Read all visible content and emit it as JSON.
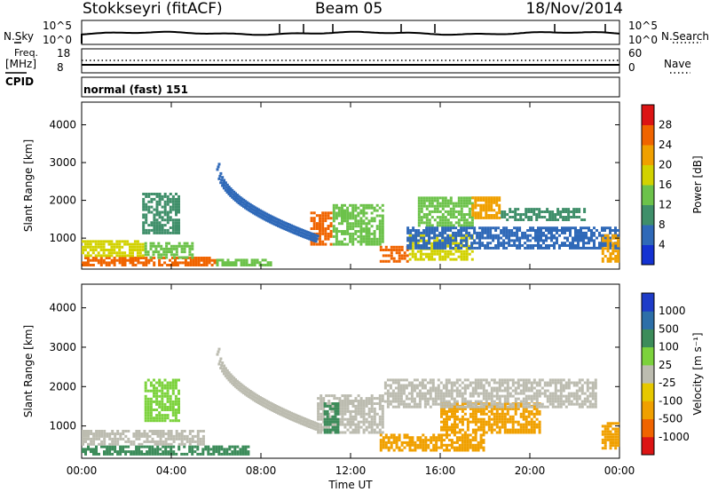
{
  "header": {
    "station": "Stokkseyri (fitACF)",
    "beam": "Beam 05",
    "date": "18/Nov/2014"
  },
  "top_panels": {
    "nsky_label": "N.Sky",
    "nsearch_label": "N.Search",
    "freq_label_top": "Freq.",
    "freq_label_unit": "[MHz]",
    "cpid_label": "CPID",
    "nave_label": "Nave",
    "noise_ticks": [
      "10^5",
      "10^0"
    ],
    "noise_right_ticks": [
      "10^5",
      "10^0"
    ],
    "freq_ticks": [
      "18",
      "8"
    ],
    "nave_ticks": [
      "60",
      "0"
    ],
    "cpid_text": "normal (fast) 151"
  },
  "colors": {
    "power": [
      "#1432d2",
      "#2f69b8",
      "#3f8f6a",
      "#6cc24a",
      "#d2d200",
      "#f0a000",
      "#f06400",
      "#dc1414"
    ],
    "velocity": [
      "#1e3cc8",
      "#2d6fa8",
      "#3c8c5a",
      "#7cd23c",
      "#bcbcb0",
      "#e6c800",
      "#f0a000",
      "#f06400",
      "#dc1414"
    ]
  },
  "chart_data": [
    {
      "type": "heatmap",
      "title": "",
      "xlabel": "Time UT",
      "ylabel": "Slant Range [km]",
      "x_ticks": [
        "00:00",
        "04:00",
        "08:00",
        "12:00",
        "16:00",
        "20:00",
        "00:00"
      ],
      "x_range_hours": [
        0,
        24
      ],
      "y_ticks": [
        1000,
        2000,
        3000,
        4000
      ],
      "ylim": [
        180,
        4600
      ],
      "colorbar": {
        "label": "Power [dB]",
        "ticks": [
          4,
          8,
          12,
          16,
          20,
          24,
          28
        ],
        "range": [
          0,
          32
        ]
      },
      "regions": [
        {
          "t0": 0.0,
          "t1": 6.0,
          "r0": 250,
          "r1": 500,
          "value": 24
        },
        {
          "t0": 6.0,
          "t1": 8.5,
          "r0": 250,
          "r1": 450,
          "value": 14
        },
        {
          "t0": 0.0,
          "t1": 2.8,
          "r0": 500,
          "r1": 950,
          "value": 16
        },
        {
          "t0": 2.8,
          "t1": 5.0,
          "r0": 450,
          "r1": 900,
          "value": 12
        },
        {
          "t0": 2.7,
          "t1": 4.4,
          "r0": 1100,
          "r1": 2200,
          "value": 8
        },
        {
          "t0": 10.2,
          "t1": 11.2,
          "r0": 800,
          "r1": 1700,
          "value": 26
        },
        {
          "t0": 11.2,
          "t1": 13.5,
          "r0": 800,
          "r1": 1900,
          "value": 14
        },
        {
          "t0": 13.3,
          "t1": 14.6,
          "r0": 350,
          "r1": 800,
          "value": 26
        },
        {
          "t0": 14.6,
          "t1": 17.5,
          "r0": 400,
          "r1": 1100,
          "value": 18
        },
        {
          "t0": 15.0,
          "t1": 17.5,
          "r0": 1300,
          "r1": 2100,
          "value": 12
        },
        {
          "t0": 17.4,
          "t1": 18.7,
          "r0": 1500,
          "r1": 2100,
          "value": 22
        },
        {
          "t0": 18.7,
          "t1": 22.5,
          "r0": 1450,
          "r1": 1800,
          "value": 10
        },
        {
          "t0": 14.5,
          "t1": 24.0,
          "r0": 700,
          "r1": 1300,
          "value": 6
        },
        {
          "t0": 23.2,
          "t1": 24.0,
          "r0": 350,
          "r1": 1100,
          "value": 20
        }
      ],
      "arc": {
        "t_start": 6.0,
        "t_end": 10.4,
        "r_start": 2850,
        "r_end": 950,
        "value": 6
      }
    },
    {
      "type": "heatmap",
      "title": "",
      "xlabel": "Time UT",
      "ylabel": "Slant Range [km]",
      "x_ticks": [
        "00:00",
        "04:00",
        "08:00",
        "12:00",
        "16:00",
        "20:00",
        "00:00"
      ],
      "x_range_hours": [
        0,
        24
      ],
      "y_ticks": [
        1000,
        2000,
        3000,
        4000
      ],
      "ylim": [
        180,
        4600
      ],
      "colorbar": {
        "label": "Velocity [m s⁻¹]",
        "ticks": [
          "1000",
          "500",
          "100",
          "25",
          "-25",
          "-100",
          "-500",
          "-1000"
        ]
      },
      "regions": [
        {
          "t0": 0.0,
          "t1": 7.5,
          "r0": 250,
          "r1": 500,
          "value": 150
        },
        {
          "t0": 0.0,
          "t1": 5.5,
          "r0": 500,
          "r1": 900,
          "value": 0
        },
        {
          "t0": 2.8,
          "t1": 4.4,
          "r0": 1100,
          "r1": 2200,
          "value": 80
        },
        {
          "t0": 10.5,
          "t1": 13.5,
          "r0": 800,
          "r1": 1800,
          "value": 0
        },
        {
          "t0": 10.8,
          "t1": 11.5,
          "r0": 800,
          "r1": 1600,
          "value": 100
        },
        {
          "t0": 13.3,
          "t1": 18.0,
          "r0": 350,
          "r1": 800,
          "value": -300
        },
        {
          "t0": 16.0,
          "t1": 20.5,
          "r0": 800,
          "r1": 1600,
          "value": -300
        },
        {
          "t0": 13.5,
          "t1": 23.0,
          "r0": 1450,
          "r1": 2200,
          "value": 0
        },
        {
          "t0": 23.2,
          "t1": 24.0,
          "r0": 400,
          "r1": 1100,
          "value": -300
        }
      ],
      "arc": {
        "t_start": 6.0,
        "t_end": 10.4,
        "r_start": 2850,
        "r_end": 950,
        "value": 0
      }
    }
  ]
}
